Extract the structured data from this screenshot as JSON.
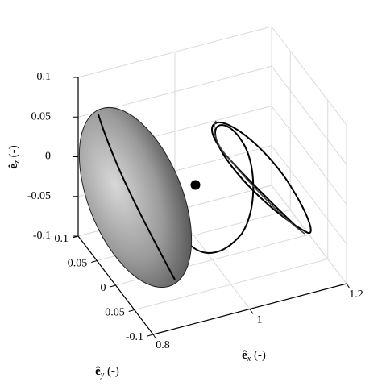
{
  "chart_data": {
    "type": "scatter3d",
    "x_label": {
      "symbol": "ê",
      "subscript": "x",
      "unit": "(-)"
    },
    "y_label": {
      "symbol": "ê",
      "subscript": "y",
      "unit": "(-)"
    },
    "z_label": {
      "symbol": "ê",
      "subscript": "z",
      "unit": "(-)"
    },
    "xlim": [
      0.8,
      1.2
    ],
    "ylim": [
      -0.1,
      0.1
    ],
    "zlim": [
      -0.1,
      0.1
    ],
    "xticks": [
      0.8,
      1,
      1.2
    ],
    "yticks": [
      -0.1,
      -0.05,
      0,
      0.05,
      0.1
    ],
    "zticks": [
      -0.1,
      -0.05,
      0,
      0.05,
      0.1
    ],
    "grid": true,
    "x": [
      0.965
    ],
    "y": [
      0
    ],
    "z": [
      0
    ],
    "color": "#000000"
  }
}
